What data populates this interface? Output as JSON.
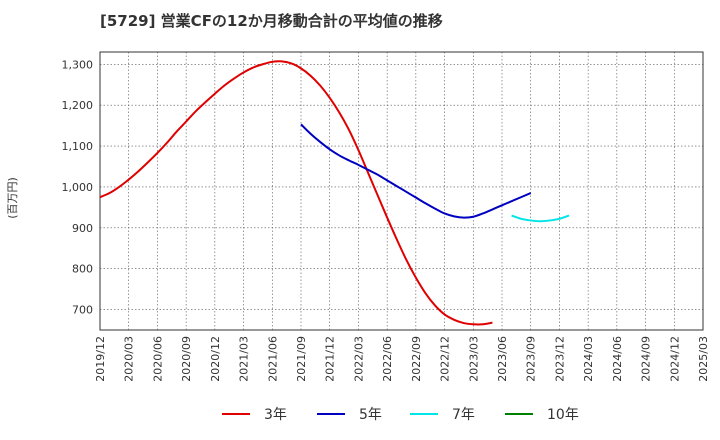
{
  "chart_data": {
    "type": "line",
    "title": "[5729]  営業CFの12か月移動合計の平均値の推移",
    "ylabel": "(百万円)",
    "xlabel": "",
    "ylim": [
      650,
      1330
    ],
    "y_ticks": [
      700,
      800,
      900,
      1000,
      1100,
      1200,
      1300
    ],
    "y_tick_labels": [
      "700",
      "800",
      "900",
      "1,000",
      "1,100",
      "1,200",
      "1,300"
    ],
    "x_tick_labels": [
      "2019/12",
      "2020/03",
      "2020/06",
      "2020/09",
      "2020/12",
      "2021/03",
      "2021/06",
      "2021/09",
      "2021/12",
      "2022/03",
      "2022/06",
      "2022/09",
      "2022/12",
      "2023/03",
      "2023/06",
      "2023/09",
      "2023/12",
      "2024/03",
      "2024/06",
      "2024/09",
      "2024/12",
      "2025/03"
    ],
    "grid": true,
    "legend_position": "bottom",
    "series": [
      {
        "name": "3年",
        "color": "#e00000",
        "start": "2019/12",
        "values": [
          975,
          985,
          1000,
          1018,
          1038,
          1060,
          1083,
          1108,
          1135,
          1160,
          1185,
          1207,
          1228,
          1248,
          1265,
          1280,
          1292,
          1300,
          1306,
          1307,
          1302,
          1290,
          1272,
          1248,
          1218,
          1182,
          1140,
          1090,
          1035,
          980,
          925,
          872,
          822,
          778,
          740,
          710,
          688,
          675,
          667,
          664,
          664,
          668
        ]
      },
      {
        "name": "5年",
        "color": "#0000c0",
        "start": "2021/09",
        "values": [
          1153,
          1130,
          1110,
          1092,
          1077,
          1065,
          1054,
          1042,
          1030,
          1016,
          1002,
          988,
          974,
          960,
          947,
          935,
          928,
          925,
          927,
          935,
          945,
          955,
          965,
          975,
          985
        ]
      },
      {
        "name": "7年",
        "color": "#00e5e5",
        "start": "2023/07",
        "values": [
          930,
          922,
          918,
          916,
          918,
          922,
          930
        ]
      },
      {
        "name": "10年",
        "color": "#008000",
        "start": "2024/03",
        "values": []
      }
    ]
  }
}
